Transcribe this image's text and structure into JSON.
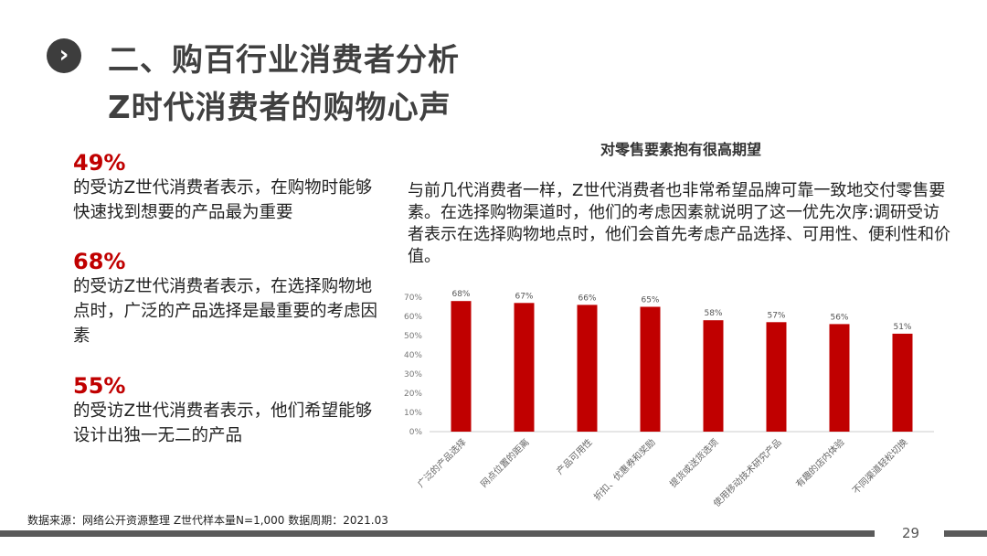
{
  "header": {
    "icon": "chevron-right-icon",
    "title_line1": "二、购百行业消费者分析",
    "title_line2": "Z时代消费者的购物心声"
  },
  "stats": [
    {
      "value": "49%",
      "text": "的受访Z世代消费者表示，在购物时能够快速找到想要的产品最为重要"
    },
    {
      "value": "68%",
      "text": "的受访Z世代消费者表示，在选择购物地点时，广泛的产品选择是最重要的考虑因素"
    },
    {
      "value": "55%",
      "text": "的受访Z世代消费者表示，他们希望能够设计出独一无二的产品"
    }
  ],
  "intro": "与前几代消费者一样，Z世代消费者也非常希望品牌可靠一致地交付零售要素。在选择购物渠道时，他们的考虑因素就说明了这一优先次序:调研受访者表示在选择购物地点时，他们会首先考虑产品选择、可用性、便利性和价值。",
  "chart_data": {
    "type": "bar",
    "title": "对零售要素抱有很高期望",
    "categories": [
      "广泛的产品选择",
      "网点位置的距离",
      "产品可用性",
      "折扣、优惠券和奖励",
      "提货或送货选项",
      "使用移动技术研究产品",
      "有趣的店内体验",
      "不同渠道轻松切换"
    ],
    "values": [
      68,
      67,
      66,
      65,
      58,
      57,
      56,
      51
    ],
    "data_labels": [
      "68%",
      "67%",
      "66%",
      "65%",
      "58%",
      "57%",
      "56%",
      "51%"
    ],
    "yticks": [
      "0%",
      "10%",
      "20%",
      "30%",
      "40%",
      "50%",
      "60%",
      "70%"
    ],
    "ylim": [
      0,
      70
    ],
    "xlabel": "",
    "ylabel": "",
    "grid": false,
    "bar_color": "#c00000"
  },
  "footer": {
    "source": "数据来源：网络公开资源整理 Z世代样本量N=1,000 数据周期：2021.03",
    "page_number": "29"
  }
}
